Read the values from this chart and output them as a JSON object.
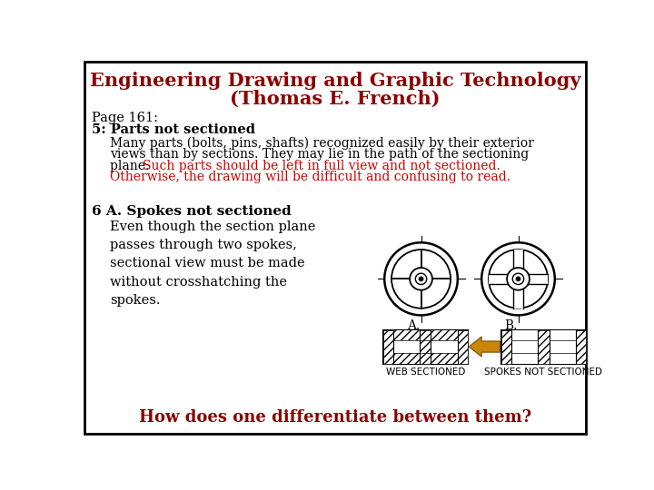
{
  "title_line1": "Engineering Drawing and Graphic Technology",
  "title_line2": "(Thomas E. French)",
  "title_color": "#8B0000",
  "page_label": "Page 161:",
  "section_header": "5: Parts not sectioned",
  "body_text_black1": "Many parts (bolts, pins, shafts) recognized easily by their exterior",
  "body_text_black2": "views than by sections. They may lie in the path of the sectioning",
  "body_text_black3": "plane. ",
  "body_text_red1": "Such parts should be left in full view and not sectioned.",
  "body_text_red2": "Otherwise, the drawing will be difficult and confusing to read.",
  "section6_header": "6 A. Spokes not sectioned",
  "section6_line1": "Even though the section plane",
  "section6_line2": "passes through two spokes,",
  "section6_line3": "sectional view must be made",
  "section6_line4": "without crosshatching the",
  "section6_line5": "spokes.",
  "label_A": "A.",
  "label_B": "B.",
  "label_web": "WEB SECTIONED",
  "label_spokes": "SPOKES NOT SECTIONED",
  "footer_text": "How does one differentiate between them?",
  "footer_color": "#8B0000",
  "bg_color": "#FFFFFF",
  "border_color": "#000000",
  "text_color": "#000000",
  "red_color": "#CC0000",
  "arrow_color": "#C8860A",
  "line_color": "#000000",
  "fig_width": 7.2,
  "fig_height": 5.4,
  "dpi": 100
}
